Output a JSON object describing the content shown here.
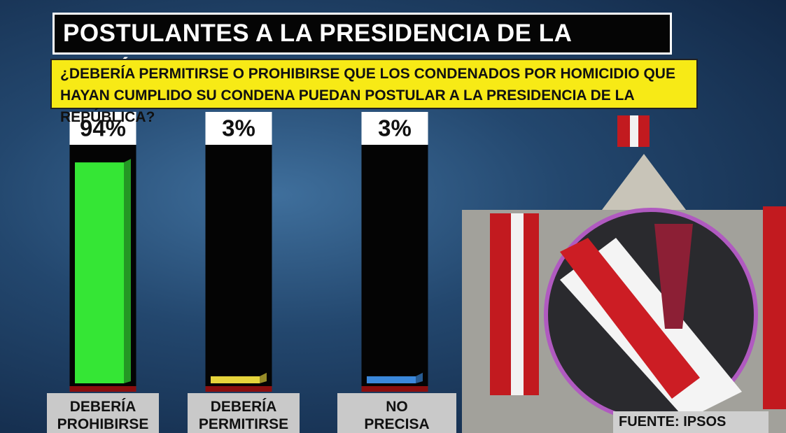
{
  "chart_data": {
    "type": "bar",
    "title": "POSTULANTES A LA PRESIDENCIA DE LA REPÚBLICA",
    "subtitle": "¿DEBERÍA PERMITIRSE O PROHIBIRSE QUE LOS CONDENADOS POR HOMICIDIO QUE HAYAN CUMPLIDO SU CONDENA PUEDAN POSTULAR A LA PRESIDENCIA DE LA REPÚBLICA?",
    "categories": [
      "DEBERÍA PROHIBIRSE",
      "DEBERÍA PERMITIRSE",
      "NO PRECISA"
    ],
    "values": [
      94,
      3,
      3
    ],
    "value_labels": [
      "94%",
      "3%",
      "3%"
    ],
    "colors": [
      "#35e635",
      "#e6d43c",
      "#3b88db"
    ],
    "ylim": [
      0,
      100
    ],
    "source": "FUENTE: IPSOS PERÚ"
  }
}
